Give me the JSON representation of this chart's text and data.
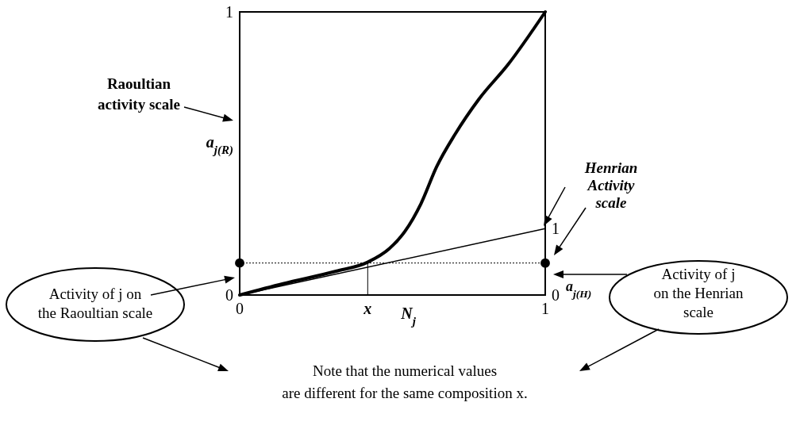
{
  "chart_data": {
    "type": "line",
    "xlabel": "N$_{j}$",
    "ylabel": "a$_{j(R)}$",
    "y2label": "a$_{j(H)}$",
    "xlim": [
      0,
      1
    ],
    "xticks": [
      0,
      1
    ],
    "ylim": [
      0,
      1
    ],
    "yticks": [
      0,
      1
    ],
    "y2lim": [
      0,
      4.26
    ],
    "y2ticks": [
      0,
      1
    ],
    "series": [
      {
        "type": "line",
        "color": "#000000",
        "x": [
          0,
          0.142,
          0.315,
          0.419,
          0.489,
          0.541,
          0.593,
          0.645,
          0.705,
          0.783,
          0.879,
          1
        ],
        "values": [
          0,
          0.04,
          0.084,
          0.116,
          0.163,
          0.225,
          0.322,
          0.454,
          0.568,
          0.692,
          0.815,
          1
        ]
      },
      {
        "color": "#000000",
        "axis": "y2",
        "x": [
          0,
          1
        ],
        "values": [
          0,
          1
        ]
      },
      {
        "type": "scatter",
        "color": "#000000",
        "marker": "circle",
        "x": [
          0
        ],
        "values": [
          0.113
        ]
      },
      {
        "type": "scatter",
        "color": "#000000",
        "marker": "circle",
        "axis": "y2",
        "x": [
          1
        ],
        "values": [
          0.48
        ]
      }
    ],
    "ref_lines": [
      {
        "axis": "y",
        "value": 0.113,
        "line_style": "dotted"
      },
      {
        "axis": "x",
        "value": 0.419,
        "label": "x"
      }
    ],
    "grid": false,
    "annotations": [
      "Raoultian activity scale",
      {
        "text": "Henrian Activity scale",
        "x": 1,
        "y": 0.235
      },
      "Activity of j on the Raoultian scale",
      "Activity of j on the Henrian scale",
      "Note that the numerical values are different for the same composition x."
    ]
  }
}
